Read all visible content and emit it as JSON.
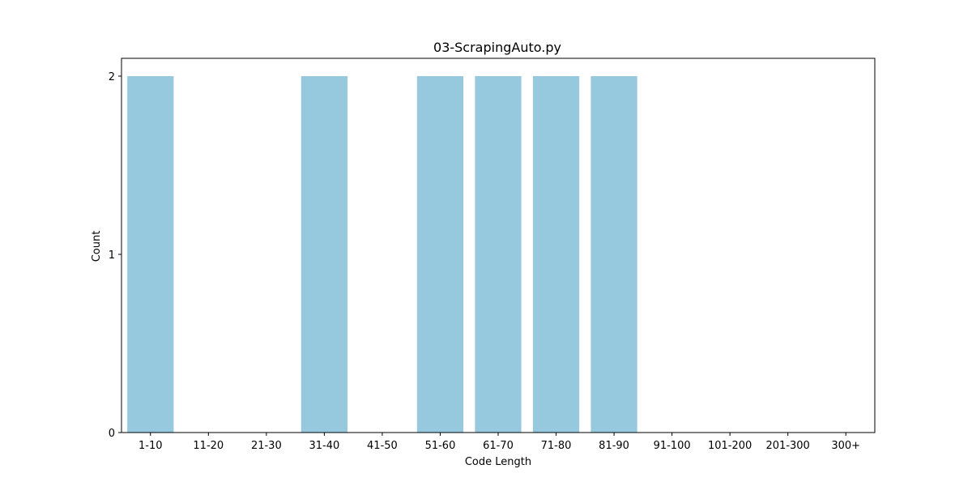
{
  "chart_data": {
    "type": "bar",
    "title": "03-ScrapingAuto.py",
    "xlabel": "Code Length",
    "ylabel": "Count",
    "categories": [
      "1-10",
      "11-20",
      "21-30",
      "31-40",
      "41-50",
      "51-60",
      "61-70",
      "71-80",
      "81-90",
      "91-100",
      "101-200",
      "201-300",
      "300+"
    ],
    "values": [
      2,
      0,
      0,
      2,
      0,
      2,
      2,
      2,
      2,
      0,
      0,
      0,
      0
    ],
    "ylim": [
      0,
      2.1
    ],
    "yticks": [
      0,
      1,
      2
    ],
    "grid": false,
    "bar_color": "#96c9de"
  }
}
